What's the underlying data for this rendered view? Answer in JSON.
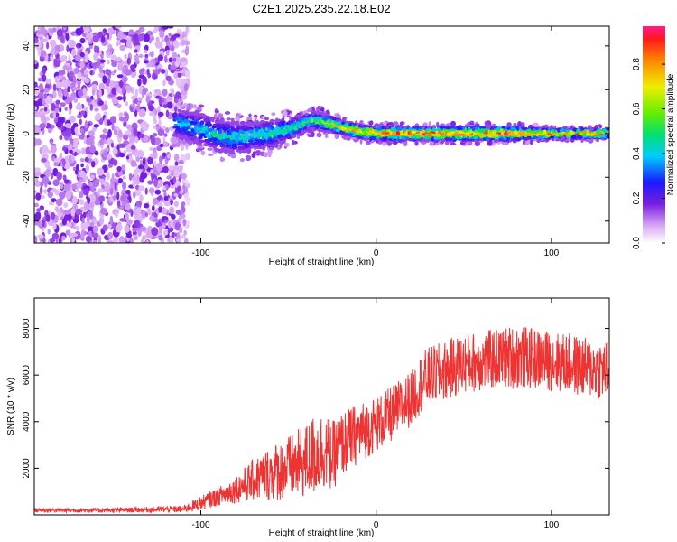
{
  "title": "C2E1.2025.235.22.18.E02",
  "chart_data": [
    {
      "type": "heatmap",
      "title": "C2E1.2025.235.22.18.E02",
      "xlabel": "Height of straight line (km)",
      "ylabel": "Frequency (Hz)",
      "xlim": [
        -195,
        133
      ],
      "ylim": [
        -50,
        49
      ],
      "xticks": [
        -100,
        0,
        100
      ],
      "yticks": [
        -40,
        -20,
        0,
        20,
        40
      ],
      "colorbar": {
        "label": "Normalized spectral amplitude",
        "range": [
          0,
          0.97
        ],
        "ticks": [
          0.0,
          0.2,
          0.4,
          0.6,
          0.8
        ],
        "tick_labels": [
          "0.0",
          "0.2",
          "0.4",
          "0.6",
          "0.8"
        ]
      },
      "noise_region_x": [
        -195,
        -107
      ],
      "signal_ridge": {
        "x": [
          -115,
          -100,
          -90,
          -80,
          -70,
          -60,
          -50,
          -40,
          -35,
          -30,
          -20,
          -10,
          0,
          25,
          50,
          75,
          100,
          133
        ],
        "freq": [
          5,
          2,
          -1,
          -2,
          -1,
          0,
          2,
          5,
          6,
          5,
          3,
          1,
          0,
          0,
          0,
          0,
          0,
          0
        ],
        "halfwidth_hz": [
          6,
          7,
          7,
          7,
          6,
          6,
          5,
          4,
          4,
          4,
          3,
          3,
          3,
          3,
          3,
          3,
          2,
          2
        ],
        "peak_amplitude": [
          0.45,
          0.5,
          0.5,
          0.5,
          0.5,
          0.55,
          0.55,
          0.6,
          0.6,
          0.7,
          0.85,
          0.9,
          0.95,
          0.95,
          0.95,
          0.95,
          0.95,
          0.95
        ]
      }
    },
    {
      "type": "line",
      "xlabel": "Height of straight line (km)",
      "ylabel": "SNR (10 * v/v)",
      "xlim": [
        -195,
        133
      ],
      "ylim": [
        0,
        9300
      ],
      "xticks": [
        -100,
        0,
        100
      ],
      "yticks": [
        2000,
        4000,
        6000,
        8000
      ],
      "series": [
        {
          "name": "SNR",
          "color": "#ee3333",
          "envelope_x": [
            -195,
            -150,
            -110,
            -100,
            -90,
            -80,
            -70,
            -60,
            -50,
            -40,
            -35,
            -30,
            -25,
            -20,
            -10,
            0,
            5,
            10,
            20,
            25,
            30,
            40,
            50,
            60,
            70,
            80,
            90,
            100,
            110,
            120,
            133
          ],
          "envelope_mean": [
            200,
            200,
            250,
            500,
            800,
            1100,
            1500,
            1800,
            2000,
            2300,
            2600,
            2800,
            2500,
            3000,
            3500,
            3900,
            4100,
            4400,
            5000,
            5600,
            5900,
            6200,
            6500,
            6600,
            6700,
            6800,
            6700,
            6600,
            6500,
            6300,
            6200
          ],
          "envelope_spread": [
            100,
            100,
            150,
            300,
            400,
            600,
            900,
            1200,
            1400,
            1600,
            1800,
            1700,
            1500,
            1400,
            1300,
            1200,
            1200,
            1200,
            1200,
            1300,
            1300,
            1300,
            1300,
            1300,
            1300,
            1400,
            1300,
            1300,
            1300,
            1300,
            1300
          ]
        }
      ]
    }
  ]
}
